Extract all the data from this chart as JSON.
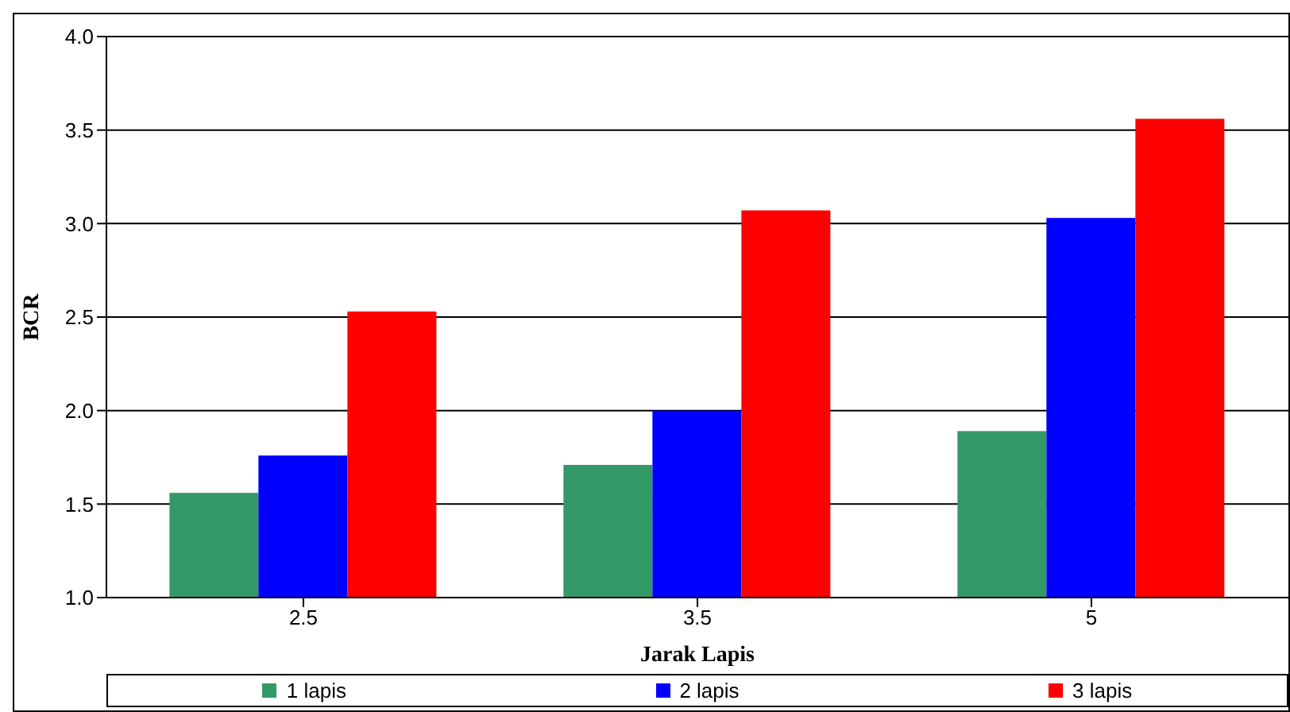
{
  "chart_data": {
    "type": "bar",
    "xlabel": "Jarak Lapis",
    "ylabel": "BCR",
    "categories": [
      "2.5",
      "3.5",
      "5"
    ],
    "series": [
      {
        "name": "1 lapis",
        "color": "#339966",
        "values": [
          1.56,
          1.71,
          1.89
        ]
      },
      {
        "name": "2 lapis",
        "color": "#0000ff",
        "values": [
          1.76,
          2.0,
          3.03
        ]
      },
      {
        "name": "3 lapis",
        "color": "#ff0000",
        "values": [
          2.53,
          3.07,
          3.56
        ]
      }
    ],
    "ylim": [
      1,
      4
    ],
    "yticks": [
      {
        "value": 1,
        "label": "1.0"
      },
      {
        "value": 1.5,
        "label": "1.5"
      },
      {
        "value": 2,
        "label": "2.0"
      },
      {
        "value": 2.5,
        "label": "2.5"
      },
      {
        "value": 3,
        "label": "3.0"
      },
      {
        "value": 3.5,
        "label": "3.5"
      },
      {
        "value": 4,
        "label": "4.0"
      }
    ],
    "grid": "y",
    "legend": "bottom"
  }
}
